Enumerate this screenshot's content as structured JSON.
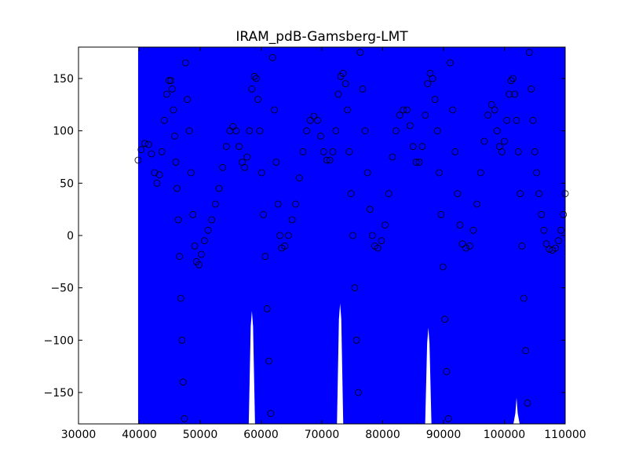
{
  "chart_data": {
    "type": "scatter",
    "title": "IRAM_pdB-Gamsberg-LMT",
    "xlabel": "",
    "ylabel": "",
    "xlim": [
      30000,
      110000
    ],
    "ylim": [
      -180,
      180
    ],
    "x_ticks": [
      30000,
      40000,
      50000,
      60000,
      70000,
      80000,
      90000,
      100000,
      110000
    ],
    "x_tick_labels": [
      "30000",
      "40000",
      "50000",
      "60000",
      "70000",
      "80000",
      "90000",
      "100000",
      "110000"
    ],
    "y_ticks": [
      150,
      100,
      50,
      0,
      -50,
      -100,
      -150
    ],
    "y_tick_labels": [
      "150",
      "100",
      "50",
      "0",
      "−50",
      "−100",
      "−150"
    ],
    "grid": false,
    "marker": "open circle",
    "background_fill": {
      "color": "#0000ff",
      "x_start": 39800,
      "x_end": 110000,
      "gaps": [
        {
          "x": 58500,
          "top_y": -72
        },
        {
          "x": 73000,
          "top_y": -65
        },
        {
          "x": 87500,
          "top_y": -88
        },
        {
          "x": 102000,
          "top_y": -155
        }
      ]
    },
    "series": [
      {
        "points": [
          [
            39800,
            72
          ],
          [
            40300,
            82
          ],
          [
            40900,
            88
          ],
          [
            41500,
            87
          ],
          [
            42000,
            78
          ],
          [
            42500,
            60
          ],
          [
            42900,
            50
          ],
          [
            43300,
            58
          ],
          [
            43700,
            80
          ],
          [
            44100,
            110
          ],
          [
            44500,
            135
          ],
          [
            44900,
            148
          ],
          [
            45200,
            148
          ],
          [
            45400,
            140
          ],
          [
            45600,
            120
          ],
          [
            45800,
            95
          ],
          [
            46000,
            70
          ],
          [
            46200,
            45
          ],
          [
            46400,
            15
          ],
          [
            46600,
            -20
          ],
          [
            46800,
            -60
          ],
          [
            47000,
            -100
          ],
          [
            47200,
            -140
          ],
          [
            47400,
            -175
          ],
          [
            47600,
            165
          ],
          [
            47900,
            130
          ],
          [
            48200,
            100
          ],
          [
            48500,
            60
          ],
          [
            48800,
            20
          ],
          [
            49100,
            -10
          ],
          [
            49400,
            -25
          ],
          [
            49800,
            -28
          ],
          [
            50200,
            -18
          ],
          [
            50700,
            -5
          ],
          [
            51300,
            5
          ],
          [
            51900,
            15
          ],
          [
            52500,
            30
          ],
          [
            53100,
            45
          ],
          [
            53700,
            65
          ],
          [
            54300,
            85
          ],
          [
            54900,
            100
          ],
          [
            55400,
            104
          ],
          [
            55900,
            100
          ],
          [
            56400,
            85
          ],
          [
            56900,
            70
          ],
          [
            57300,
            65
          ],
          [
            57700,
            75
          ],
          [
            58100,
            100
          ],
          [
            58500,
            140
          ],
          [
            58900,
            152
          ],
          [
            59200,
            150
          ],
          [
            59500,
            130
          ],
          [
            59800,
            100
          ],
          [
            60100,
            60
          ],
          [
            60400,
            20
          ],
          [
            60700,
            -20
          ],
          [
            61000,
            -70
          ],
          [
            61300,
            -120
          ],
          [
            61600,
            -170
          ],
          [
            61900,
            170
          ],
          [
            62200,
            120
          ],
          [
            62500,
            70
          ],
          [
            62800,
            30
          ],
          [
            63100,
            0
          ],
          [
            63400,
            -12
          ],
          [
            63900,
            -10
          ],
          [
            64500,
            0
          ],
          [
            65100,
            15
          ],
          [
            65700,
            30
          ],
          [
            66300,
            55
          ],
          [
            66900,
            80
          ],
          [
            67500,
            100
          ],
          [
            68100,
            110
          ],
          [
            68700,
            114
          ],
          [
            69300,
            110
          ],
          [
            69800,
            95
          ],
          [
            70300,
            80
          ],
          [
            70800,
            72
          ],
          [
            71300,
            72
          ],
          [
            71800,
            80
          ],
          [
            72300,
            100
          ],
          [
            72700,
            135
          ],
          [
            73100,
            152
          ],
          [
            73500,
            155
          ],
          [
            73900,
            145
          ],
          [
            74200,
            120
          ],
          [
            74500,
            80
          ],
          [
            74800,
            40
          ],
          [
            75100,
            0
          ],
          [
            75400,
            -50
          ],
          [
            75700,
            -100
          ],
          [
            76000,
            -150
          ],
          [
            76300,
            175
          ],
          [
            76700,
            140
          ],
          [
            77100,
            100
          ],
          [
            77500,
            60
          ],
          [
            77900,
            25
          ],
          [
            78300,
            0
          ],
          [
            78700,
            -10
          ],
          [
            79200,
            -12
          ],
          [
            79800,
            -5
          ],
          [
            80400,
            10
          ],
          [
            81000,
            40
          ],
          [
            81600,
            75
          ],
          [
            82200,
            100
          ],
          [
            82800,
            115
          ],
          [
            83400,
            120
          ],
          [
            84000,
            120
          ],
          [
            84500,
            105
          ],
          [
            85000,
            85
          ],
          [
            85500,
            70
          ],
          [
            86000,
            70
          ],
          [
            86500,
            85
          ],
          [
            87000,
            115
          ],
          [
            87400,
            145
          ],
          [
            87800,
            155
          ],
          [
            88200,
            150
          ],
          [
            88600,
            130
          ],
          [
            89000,
            100
          ],
          [
            89300,
            60
          ],
          [
            89600,
            20
          ],
          [
            89900,
            -30
          ],
          [
            90200,
            -80
          ],
          [
            90500,
            -130
          ],
          [
            90800,
            -175
          ],
          [
            91100,
            165
          ],
          [
            91500,
            120
          ],
          [
            91900,
            80
          ],
          [
            92300,
            40
          ],
          [
            92700,
            10
          ],
          [
            93100,
            -8
          ],
          [
            93700,
            -12
          ],
          [
            94300,
            -10
          ],
          [
            94900,
            5
          ],
          [
            95500,
            30
          ],
          [
            96100,
            60
          ],
          [
            96700,
            90
          ],
          [
            97300,
            115
          ],
          [
            97900,
            125
          ],
          [
            98400,
            120
          ],
          [
            98800,
            100
          ],
          [
            99200,
            85
          ],
          [
            99600,
            80
          ],
          [
            100000,
            90
          ],
          [
            100400,
            110
          ],
          [
            100800,
            135
          ],
          [
            101100,
            148
          ],
          [
            101400,
            150
          ],
          [
            101700,
            135
          ],
          [
            102000,
            110
          ],
          [
            102300,
            80
          ],
          [
            102600,
            40
          ],
          [
            102900,
            -10
          ],
          [
            103200,
            -60
          ],
          [
            103500,
            -110
          ],
          [
            103800,
            -160
          ],
          [
            104100,
            175
          ],
          [
            104400,
            140
          ],
          [
            104700,
            110
          ],
          [
            105000,
            80
          ],
          [
            105300,
            60
          ],
          [
            105700,
            40
          ],
          [
            106100,
            20
          ],
          [
            106500,
            5
          ],
          [
            106900,
            -8
          ],
          [
            107400,
            -13
          ],
          [
            107900,
            -14
          ],
          [
            108400,
            -12
          ],
          [
            108900,
            -5
          ],
          [
            109300,
            5
          ],
          [
            109700,
            20
          ],
          [
            110000,
            40
          ]
        ]
      }
    ]
  }
}
